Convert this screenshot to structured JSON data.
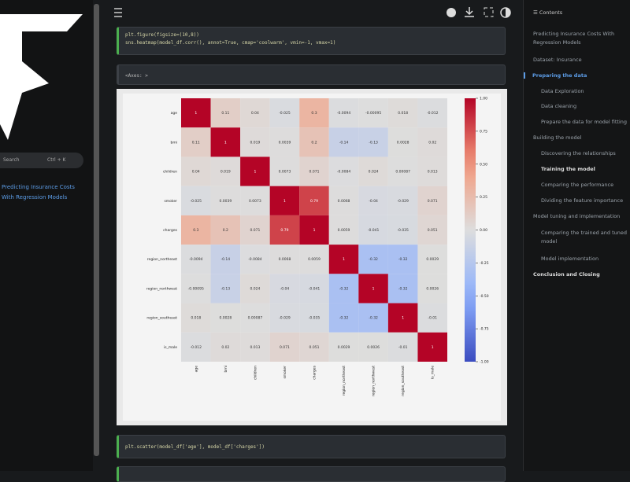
{
  "sidebar": {
    "book_title": "Predicting Insurance Costs With Regression Models",
    "search": "Search",
    "shortcut": "Ctrl + K"
  },
  "toc": {
    "title": "Contents",
    "items": [
      "Predicting Insurance Costs With Regression Models",
      "Dataset: Insurance",
      "Preparing the data",
      "Data Exploration",
      "Data cleaning",
      "Prepare the data for model fitting",
      "Building the model",
      "Discovering the relationships",
      "Training the model",
      "Comparing the performance",
      "Dividing the feature importance",
      "Model tuning and implementation",
      "Comparing the trained and tuned model",
      "Model implementation",
      "Conclusion and Closing"
    ]
  },
  "cells": [
    {
      "code": [
        "plt.figure(figsize=(10,8))",
        "sns.heatmap(model_df.corr(), annot=True, cmap='coolwarm', vmin=-1, vmax=1)"
      ]
    },
    {
      "code": [
        "plt.scatter(model_df['age'], model_df['charges'])"
      ]
    }
  ],
  "output_prompt": "<Axes: >",
  "chart_data": {
    "type": "heatmap",
    "cmap": "coolwarm",
    "categories": [
      "age",
      "bmi",
      "children",
      "smoker",
      "charges",
      "region_northeast",
      "region_northwest",
      "region_southeast",
      "is_male"
    ],
    "values": [
      [
        1,
        0.11,
        0.04,
        -0.025,
        0.3,
        -0.0094,
        -0.00095,
        0.018,
        -0.012
      ],
      [
        0.11,
        1,
        0.019,
        0.0039,
        0.2,
        -0.14,
        -0.13,
        0.0028,
        0.02
      ],
      [
        0.04,
        0.019,
        1,
        0.0073,
        0.071,
        -0.0084,
        0.024,
        0.00087,
        0.013
      ],
      [
        -0.025,
        0.0039,
        0.0073,
        1,
        0.79,
        0.0068,
        -0.04,
        -0.029,
        0.071
      ],
      [
        0.3,
        0.2,
        0.071,
        0.79,
        1,
        0.0059,
        -0.041,
        -0.035,
        0.051
      ],
      [
        -0.0094,
        -0.14,
        -0.0084,
        0.0068,
        0.0059,
        1,
        -0.32,
        -0.32,
        0.0029
      ],
      [
        -0.00095,
        -0.13,
        0.024,
        -0.04,
        -0.041,
        -0.32,
        1,
        -0.32,
        0.0026
      ],
      [
        0.018,
        0.0028,
        0.00087,
        -0.029,
        -0.035,
        -0.32,
        -0.32,
        1,
        -0.01
      ],
      [
        -0.012,
        0.02,
        0.013,
        0.071,
        0.051,
        0.0029,
        0.0026,
        -0.01,
        1
      ]
    ],
    "clim": [
      -1,
      1
    ],
    "cticks": [
      {
        "value": 1,
        "label": "1.00"
      },
      {
        "value": 0.75,
        "label": "0.75"
      },
      {
        "value": 0.5,
        "label": "0.50"
      },
      {
        "value": 0.25,
        "label": "0.25"
      },
      {
        "value": 0,
        "label": "0.00"
      },
      {
        "value": -0.25,
        "label": "-0.25"
      },
      {
        "value": -0.5,
        "label": "-0.50"
      },
      {
        "value": -0.75,
        "label": "-0.75"
      },
      {
        "value": -1,
        "label": "-1.00"
      }
    ]
  }
}
